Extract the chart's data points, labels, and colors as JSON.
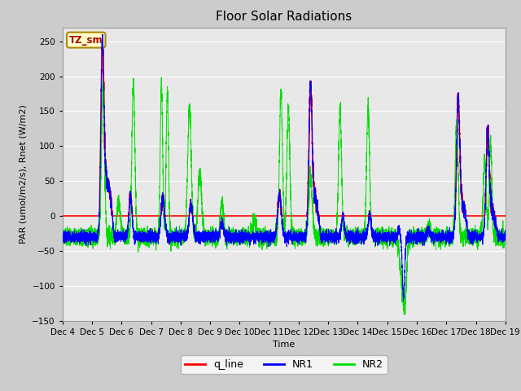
{
  "title": "Floor Solar Radiations",
  "ylabel": "PAR (umol/m2/s), Rnet (W/m2)",
  "xlabel": "Time",
  "ylim": [
    -150,
    270
  ],
  "yticks": [
    -150,
    -100,
    -50,
    0,
    50,
    100,
    150,
    200,
    250
  ],
  "fig_facecolor": "#cccccc",
  "axes_facecolor": "#e8e8e8",
  "line_colors": {
    "q_line": "red",
    "NR1": "blue",
    "NR2": "#00dd00"
  },
  "tz_label": "TZ_sm",
  "tz_box_facecolor": "#ffffcc",
  "tz_text_color": "#aa0000",
  "tz_edge_color": "#aa8800",
  "num_days": 15,
  "start_day": 4,
  "grid_color": "#ffffff",
  "title_fontsize": 11,
  "label_fontsize": 8,
  "tick_fontsize": 7.5
}
